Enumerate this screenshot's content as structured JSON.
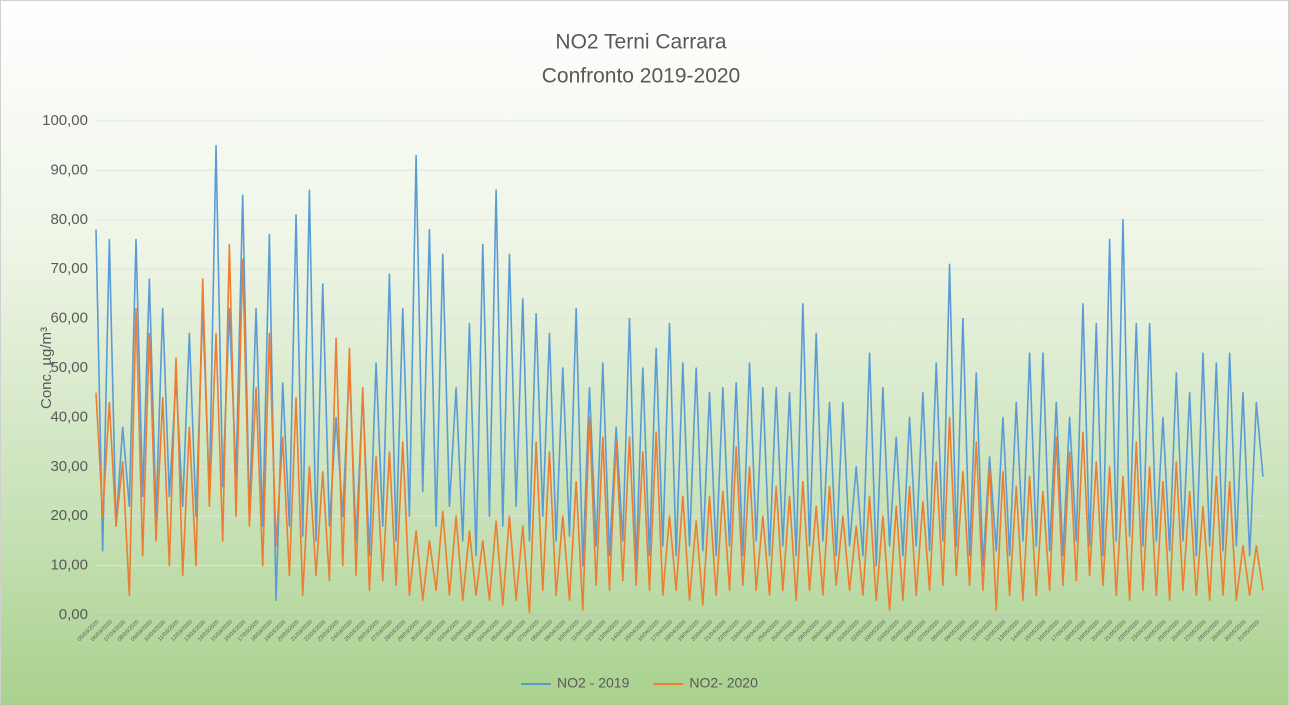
{
  "chart_data": {
    "type": "line",
    "title": [
      "NO2 Terni Carrara",
      "Confronto 2019-2020"
    ],
    "y_label": "Conc.    µg/m³",
    "categories": [
      "05/03/2020",
      null,
      "06/03/2020",
      null,
      "07/03/2020",
      null,
      "08/03/2020",
      null,
      "09/03/2020",
      null,
      "10/03/2020",
      null,
      "11/03/2020",
      null,
      "12/03/2020",
      null,
      "13/03/2020",
      null,
      "14/03/2020",
      null,
      "15/03/2020",
      null,
      "16/03/2020",
      null,
      "17/03/2020",
      null,
      "18/03/2020",
      null,
      "19/03/2020",
      null,
      "20/03/2020",
      null,
      "21/03/2020",
      null,
      "22/03/2020",
      null,
      "23/03/2020",
      null,
      "24/03/2020",
      null,
      "25/03/2020",
      null,
      "26/03/2020",
      null,
      "27/03/2020",
      null,
      "28/03/2020",
      null,
      "29/03/2020",
      null,
      "30/03/2020",
      null,
      "31/03/2020",
      null,
      "01/04/2020",
      null,
      "02/04/2020",
      null,
      "03/04/2020",
      null,
      "04/04/2020",
      null,
      "05/04/2020",
      null,
      "06/04/2020",
      null,
      "07/04/2020",
      null,
      "08/04/2020",
      null,
      "09/04/2020",
      null,
      "10/04/2020",
      null,
      "11/04/2020",
      null,
      "12/04/2020",
      null,
      "13/04/2020",
      null,
      "14/04/2020",
      null,
      "15/04/2020",
      null,
      "16/04/2020",
      null,
      "17/04/2020",
      null,
      "18/04/2020",
      null,
      "19/04/2020",
      null,
      "20/04/2020",
      null,
      "21/04/2020",
      null,
      "22/04/2020",
      null,
      "23/04/2020",
      null,
      "24/04/2020",
      null,
      "25/04/2020",
      null,
      "26/04/2020",
      null,
      "27/04/2020",
      null,
      "28/04/2020",
      null,
      "29/04/2020",
      null,
      "30/04/2020",
      null,
      "01/05/2020",
      null,
      "02/05/2020",
      null,
      "03/05/2020",
      null,
      "04/05/2020",
      null,
      "05/05/2020",
      null,
      "06/05/2020",
      null,
      "07/05/2020",
      null,
      "08/05/2020",
      null,
      "09/05/2020",
      null,
      "10/05/2020",
      null,
      "11/05/2020",
      null,
      "12/05/2020",
      null,
      "13/05/2020",
      null,
      "14/05/2020",
      null,
      "15/05/2020",
      null,
      "16/05/2020",
      null,
      "17/05/2020",
      null,
      "18/05/2020",
      null,
      "19/05/2020",
      null,
      "20/05/2020",
      null,
      "21/05/2020",
      null,
      "22/05/2020",
      null,
      "23/05/2020",
      null,
      "24/05/2020",
      null,
      "25/05/2020",
      null,
      "26/05/2020",
      null,
      "27/05/2020",
      null,
      "28/05/2020",
      null,
      "29/05/2020",
      null,
      "30/05/2020",
      null,
      "31/05/2020",
      null
    ],
    "series": [
      {
        "name": "NO2 - 2019",
        "color": "#5b9bd5",
        "values": [
          78,
          13,
          76,
          18,
          38,
          22,
          76,
          24,
          68,
          20,
          62,
          24,
          48,
          22,
          57,
          20,
          62,
          25,
          95,
          26,
          62,
          28,
          85,
          20,
          62,
          18,
          77,
          3,
          47,
          18,
          81,
          16,
          86,
          15,
          67,
          18,
          40,
          20,
          50,
          15,
          45,
          12,
          51,
          18,
          69,
          15,
          62,
          20,
          93,
          25,
          78,
          18,
          73,
          22,
          46,
          15,
          59,
          12,
          75,
          20,
          86,
          18,
          73,
          22,
          64,
          15,
          61,
          20,
          57,
          15,
          50,
          16,
          62,
          10,
          46,
          14,
          51,
          12,
          38,
          15,
          60,
          10,
          50,
          12,
          54,
          14,
          59,
          12,
          51,
          14,
          50,
          13,
          45,
          12,
          46,
          14,
          47,
          12,
          51,
          15,
          46,
          12,
          46,
          14,
          45,
          12,
          63,
          14,
          57,
          15,
          43,
          12,
          43,
          14,
          30,
          12,
          53,
          10,
          46,
          14,
          36,
          12,
          40,
          14,
          45,
          13,
          51,
          15,
          71,
          14,
          60,
          12,
          49,
          10,
          32,
          13,
          40,
          12,
          43,
          15,
          53,
          14,
          53,
          13,
          43,
          12,
          40,
          15,
          63,
          14,
          59,
          12,
          76,
          15,
          80,
          16,
          59,
          14,
          59,
          15,
          40,
          13,
          49,
          15,
          45,
          12,
          53,
          14,
          51,
          13,
          53,
          14,
          45,
          12,
          43,
          28
        ]
      },
      {
        "name": "NO2- 2020",
        "color": "#ed7d31",
        "values": [
          45,
          20,
          43,
          18,
          31,
          4,
          62,
          12,
          57,
          15,
          44,
          10,
          52,
          8,
          38,
          10,
          68,
          22,
          57,
          15,
          75,
          20,
          72,
          18,
          46,
          10,
          57,
          14,
          36,
          8,
          44,
          4,
          30,
          8,
          29,
          7,
          56,
          10,
          54,
          8,
          46,
          5,
          32,
          7,
          33,
          6,
          35,
          4,
          17,
          3,
          15,
          5,
          21,
          4,
          20,
          3,
          17,
          4,
          15,
          3,
          19,
          2,
          20,
          3,
          18,
          0.5,
          35,
          5,
          33,
          4,
          20,
          3,
          27,
          1,
          40,
          6,
          36,
          5,
          35,
          7,
          36,
          6,
          33,
          5,
          37,
          4,
          20,
          5,
          24,
          3,
          19,
          2,
          24,
          4,
          25,
          5,
          34,
          6,
          30,
          5,
          20,
          4,
          26,
          5,
          24,
          3,
          27,
          5,
          22,
          4,
          26,
          6,
          20,
          5,
          18,
          4,
          24,
          3,
          20,
          1,
          22,
          3,
          26,
          4,
          23,
          5,
          31,
          6,
          40,
          8,
          29,
          6,
          35,
          5,
          30,
          1,
          29,
          4,
          26,
          3,
          28,
          4,
          25,
          5,
          36,
          6,
          33,
          7,
          37,
          8,
          31,
          6,
          30,
          4,
          28,
          3,
          35,
          5,
          30,
          4,
          27,
          3,
          31,
          5,
          25,
          4,
          22,
          3,
          28,
          4,
          27,
          3,
          14,
          4,
          14,
          5
        ]
      }
    ],
    "ylim": [
      0,
      100
    ],
    "yticks": [
      {
        "value": 0,
        "label": "0,00"
      },
      {
        "value": 10,
        "label": "10,00"
      },
      {
        "value": 20,
        "label": "20,00"
      },
      {
        "value": 30,
        "label": "30,00"
      },
      {
        "value": 40,
        "label": "40,00"
      },
      {
        "value": 50,
        "label": "50,00"
      },
      {
        "value": 60,
        "label": "60,00"
      },
      {
        "value": 70,
        "label": "70,00"
      },
      {
        "value": 80,
        "label": "80,00"
      },
      {
        "value": 90,
        "label": "90,00"
      },
      {
        "value": 100,
        "label": "100,00"
      }
    ],
    "grid": true,
    "legend": "bottom"
  }
}
